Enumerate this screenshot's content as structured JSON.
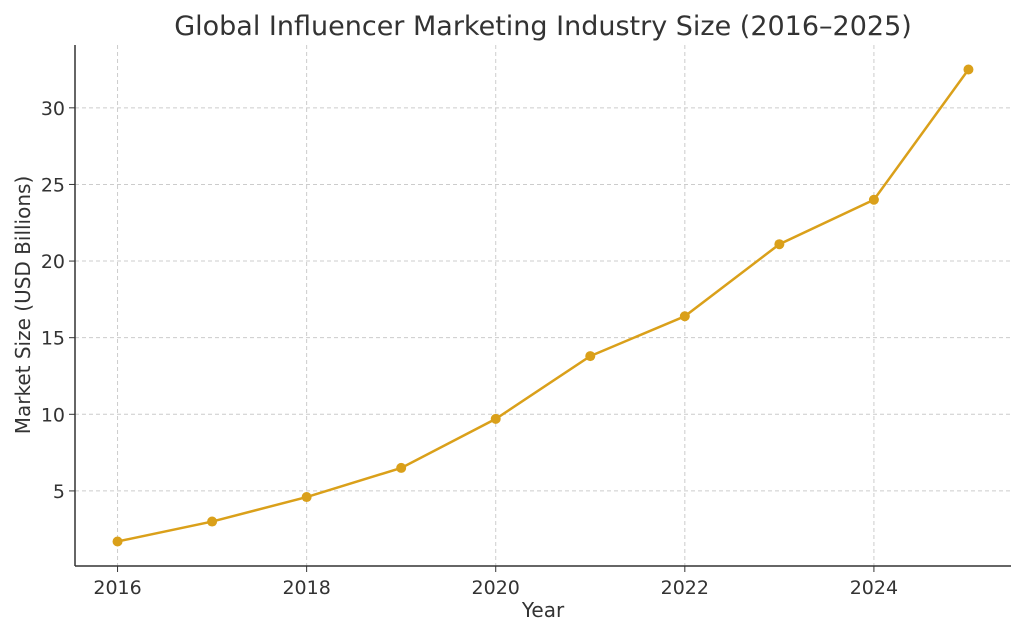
{
  "chart_data": {
    "type": "line",
    "title": "Global Influencer Marketing Industry Size (2016–2025)",
    "xlabel": "Year",
    "ylabel": "Market Size (USD Billions)",
    "x": [
      2016,
      2017,
      2018,
      2019,
      2020,
      2021,
      2022,
      2023,
      2024,
      2025
    ],
    "series": [
      {
        "values": [
          1.7,
          3.0,
          4.6,
          6.5,
          9.7,
          13.8,
          16.4,
          21.1,
          24.0,
          32.5
        ],
        "color": "#DAA01A"
      }
    ],
    "xticks": [
      "2016",
      "2018",
      "2020",
      "2022",
      "2024"
    ],
    "yticks": [
      "5",
      "10",
      "15",
      "20",
      "25",
      "30"
    ],
    "xlim": [
      2015.55,
      2025.45
    ],
    "ylim": [
      0.1,
      34.1
    ],
    "grid": true,
    "marker": "circle"
  }
}
